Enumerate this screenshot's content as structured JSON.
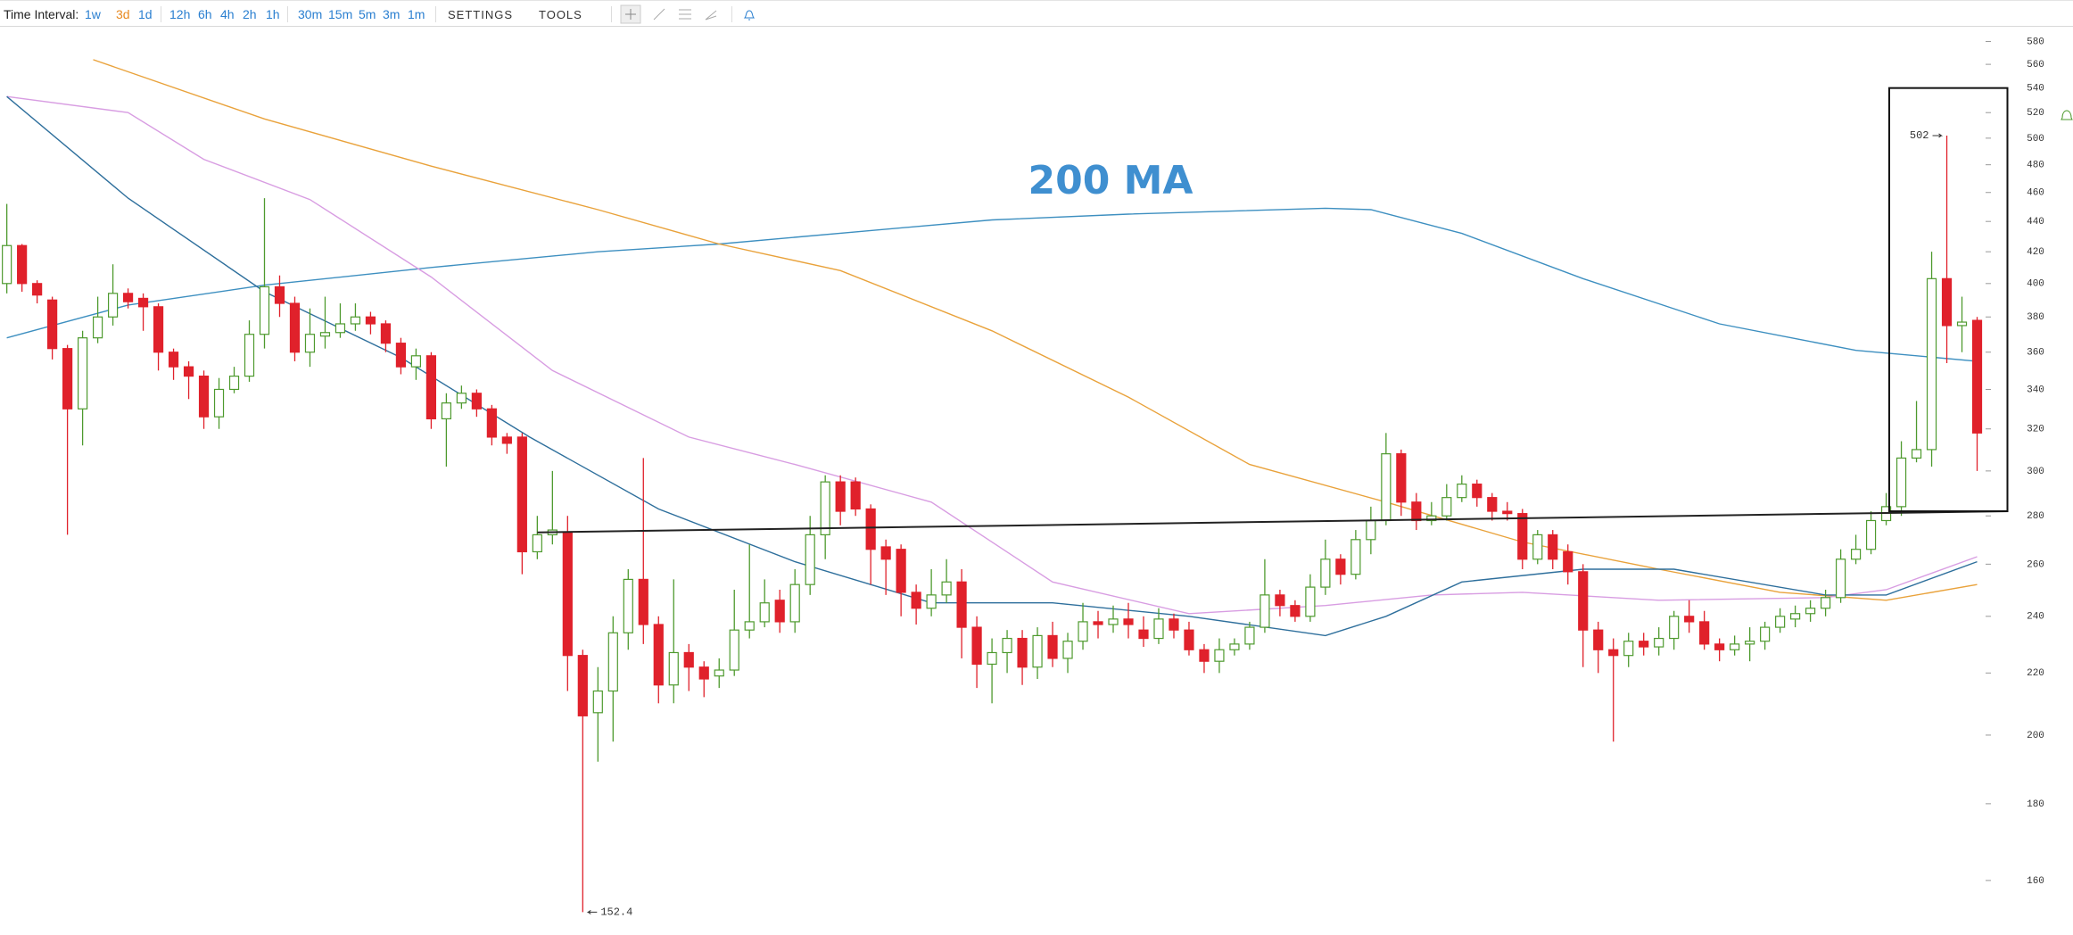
{
  "toolbar": {
    "label": "Time Interval:",
    "intervals": [
      "1w",
      "3d",
      "1d",
      "12h",
      "6h",
      "4h",
      "2h",
      "1h",
      "30m",
      "15m",
      "5m",
      "3m",
      "1m"
    ],
    "selected": 1,
    "menus": [
      "SETTINGS",
      "TOOLS"
    ]
  },
  "chart_data": {
    "type": "candlestick",
    "log_scale": true,
    "up_color": "#4e9a2e",
    "down_color": "#e0212b",
    "xlim": [
      -0.45,
      131.5
    ],
    "ylim": [
      150,
      590
    ],
    "yticks": [
      160,
      180,
      200,
      220,
      240,
      260,
      280,
      300,
      320,
      340,
      360,
      380,
      400,
      420,
      440,
      460,
      480,
      500,
      520,
      540,
      560,
      580
    ],
    "open": [
      400,
      424,
      400,
      390,
      362,
      330,
      368,
      380,
      394,
      391,
      386,
      360,
      352,
      347,
      326,
      340,
      347,
      370,
      398,
      388,
      360,
      369,
      371,
      376,
      380,
      376,
      365,
      352,
      358,
      325,
      333,
      338,
      330,
      316,
      316,
      265,
      272,
      273,
      226,
      207,
      214,
      234,
      254,
      237,
      216,
      227,
      222,
      219,
      221,
      235,
      238,
      246,
      238,
      252,
      272,
      295,
      295,
      283,
      267,
      266,
      249,
      243,
      248,
      253,
      236,
      223,
      227,
      232,
      222,
      233,
      225,
      231,
      238,
      237,
      239,
      235,
      232,
      239,
      235,
      228,
      224,
      228,
      230,
      236,
      248,
      244,
      240,
      251,
      262,
      256,
      270,
      278,
      308,
      286,
      278,
      280,
      288,
      294,
      288,
      282,
      281,
      262,
      272,
      265,
      257,
      235,
      228,
      226,
      231,
      229,
      232,
      240,
      238,
      230,
      228,
      230,
      231,
      236,
      239,
      241,
      243,
      247,
      262,
      266,
      278,
      284,
      306,
      310,
      403,
      375,
      378
    ],
    "high": [
      452,
      425,
      402,
      392,
      364,
      372,
      392,
      412,
      397,
      394,
      388,
      362,
      355,
      350,
      346,
      352,
      378,
      456,
      405,
      392,
      385,
      392,
      388,
      388,
      383,
      378,
      368,
      362,
      360,
      338,
      342,
      340,
      332,
      318,
      318,
      280,
      300,
      280,
      228,
      222,
      240,
      258,
      306,
      240,
      254,
      230,
      224,
      225,
      250,
      268,
      254,
      250,
      258,
      280,
      298,
      298,
      297,
      285,
      270,
      268,
      252,
      258,
      262,
      258,
      240,
      232,
      235,
      235,
      236,
      238,
      234,
      245,
      242,
      244,
      245,
      240,
      243,
      241,
      238,
      230,
      232,
      232,
      238,
      262,
      250,
      246,
      256,
      270,
      264,
      274,
      284,
      318,
      310,
      290,
      286,
      294,
      298,
      296,
      290,
      286,
      283,
      274,
      274,
      268,
      260,
      238,
      232,
      234,
      234,
      236,
      242,
      246,
      242,
      232,
      233,
      236,
      238,
      243,
      244,
      246,
      250,
      266,
      272,
      282,
      290,
      314,
      334,
      420,
      502,
      392,
      380
    ],
    "low": [
      394,
      395,
      388,
      356,
      272,
      312,
      365,
      375,
      385,
      372,
      350,
      345,
      335,
      320,
      320,
      338,
      344,
      362,
      380,
      355,
      352,
      362,
      368,
      372,
      370,
      360,
      348,
      345,
      320,
      302,
      330,
      326,
      312,
      308,
      256,
      262,
      268,
      214,
      152.4,
      192,
      198,
      228,
      230,
      210,
      210,
      214,
      212,
      215,
      219,
      232,
      236,
      234,
      234,
      248,
      262,
      276,
      280,
      252,
      248,
      240,
      237,
      240,
      245,
      225,
      215,
      210,
      220,
      216,
      218,
      222,
      220,
      228,
      232,
      234,
      232,
      229,
      230,
      232,
      226,
      220,
      220,
      226,
      228,
      234,
      240,
      238,
      238,
      248,
      252,
      254,
      264,
      276,
      280,
      274,
      276,
      278,
      286,
      284,
      278,
      278,
      258,
      260,
      258,
      252,
      222,
      220,
      198,
      222,
      226,
      226,
      228,
      234,
      228,
      224,
      226,
      224,
      228,
      234,
      236,
      238,
      240,
      245,
      260,
      264,
      276,
      280,
      304,
      302,
      354,
      360,
      300
    ],
    "close": [
      424,
      400,
      393,
      362,
      330,
      368,
      380,
      394,
      389,
      386,
      360,
      352,
      347,
      326,
      340,
      347,
      370,
      398,
      388,
      360,
      370,
      371,
      376,
      380,
      376,
      365,
      352,
      358,
      325,
      333,
      338,
      330,
      316,
      313,
      265,
      272,
      274,
      226,
      206,
      214,
      234,
      254,
      237,
      216,
      227,
      222,
      218,
      221,
      235,
      238,
      245,
      238,
      252,
      272,
      295,
      282,
      283,
      266,
      262,
      249,
      243,
      248,
      253,
      236,
      223,
      227,
      232,
      222,
      233,
      225,
      231,
      238,
      237,
      239,
      237,
      232,
      239,
      235,
      228,
      224,
      228,
      230,
      236,
      248,
      244,
      240,
      251,
      262,
      256,
      270,
      278,
      308,
      286,
      278,
      280,
      288,
      294,
      288,
      282,
      281,
      262,
      272,
      262,
      257,
      235,
      228,
      226,
      231,
      229,
      232,
      240,
      238,
      230,
      228,
      230,
      231,
      236,
      240,
      241,
      243,
      247,
      262,
      266,
      278,
      284,
      306,
      310,
      403,
      375,
      377,
      318
    ],
    "lines": [
      {
        "name": "200 MA",
        "color": "#3d8fc0",
        "x": [
          0,
          8,
          17,
          28,
          39,
          47,
          56,
          65,
          74,
          87,
          90,
          96,
          104,
          113,
          122,
          130
        ],
        "values": [
          368,
          387,
          399,
          410,
          420,
          425,
          433,
          441,
          445,
          449,
          448,
          432,
          403,
          376,
          361,
          355
        ]
      },
      {
        "color": "#e9a23b",
        "x": [
          5.7,
          17,
          28,
          39,
          47,
          55,
          65,
          74,
          82,
          91,
          100,
          109,
          117,
          124,
          130
        ],
        "values": [
          564,
          515,
          479,
          448,
          425,
          408,
          372,
          336,
          303,
          286,
          269,
          258,
          249,
          246,
          252
        ]
      },
      {
        "color": "#d89de2",
        "x": [
          0,
          8,
          13,
          20,
          28,
          36,
          45,
          52,
          61,
          69,
          78,
          87,
          94,
          100,
          109,
          120,
          124,
          130
        ],
        "values": [
          533,
          520,
          484,
          455,
          404,
          350,
          316,
          303,
          286,
          253,
          241,
          244,
          248,
          249,
          246,
          247,
          250,
          263
        ]
      },
      {
        "color": "#2e6f9c",
        "x": [
          0,
          8,
          17,
          26,
          34.5,
          43,
          52,
          61,
          69,
          78,
          87,
          91,
          96,
          104,
          110,
          120,
          124,
          130
        ],
        "values": [
          533,
          456,
          395,
          357,
          316,
          283,
          261,
          245,
          245,
          240,
          233,
          240,
          253,
          258,
          258,
          248,
          248,
          261
        ]
      }
    ],
    "trendline": {
      "x": [
        35,
        132
      ],
      "values": [
        273,
        282
      ]
    },
    "box": {
      "x": [
        124.2,
        132
      ],
      "values": [
        282,
        540
      ]
    },
    "peak_labels": [
      {
        "x": 128,
        "value": 502
      },
      {
        "x": 38,
        "value": 152.4
      }
    ]
  }
}
